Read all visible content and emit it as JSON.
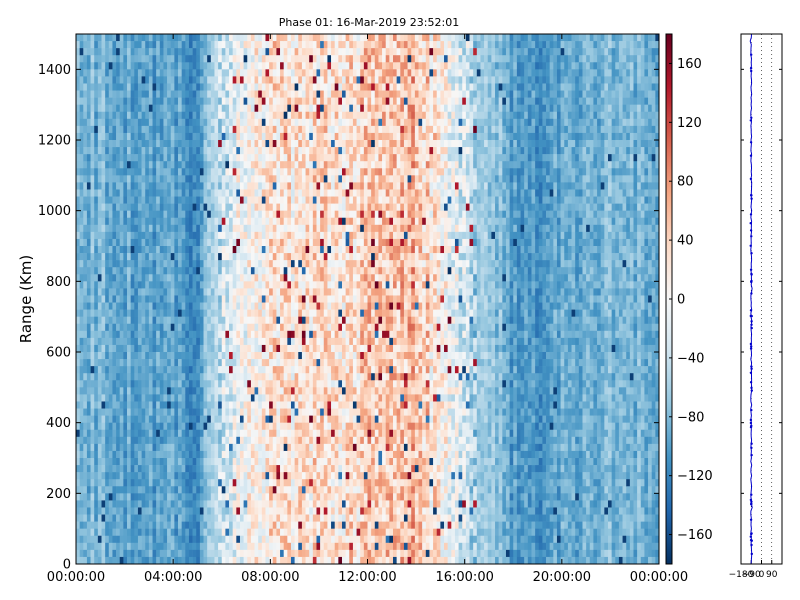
{
  "chart_data": {
    "type": "heatmap",
    "title": "Phase 01: 16-Mar-2019 23:52:01",
    "ylabel": "Range (Km)",
    "xlabel": "",
    "x_ticks": [
      "00:00:00",
      "04:00:00",
      "08:00:00",
      "12:00:00",
      "16:00:00",
      "20:00:00",
      "00:00:00"
    ],
    "x_range_hours": [
      0,
      24
    ],
    "y_ticks": [
      0,
      200,
      400,
      600,
      800,
      1000,
      1200,
      1400
    ],
    "ylim": [
      0,
      1500
    ],
    "colorbar": {
      "colormap": "RdBu_r",
      "range": [
        -180,
        180
      ],
      "ticks": [
        "−160",
        "−120",
        "−80",
        "−40",
        "0",
        "40",
        "80",
        "120",
        "160"
      ],
      "tick_values": [
        -160,
        -120,
        -80,
        -40,
        0,
        40,
        80,
        120,
        160
      ]
    },
    "time_profile_hours": [
      0,
      1,
      2,
      3,
      4,
      5,
      6,
      7,
      8,
      9,
      10,
      11,
      12,
      13,
      14,
      15,
      16,
      17,
      18,
      19,
      20,
      21,
      22,
      23,
      24
    ],
    "time_profile_phase_deg": [
      -80,
      -85,
      -95,
      -100,
      -100,
      -110,
      -40,
      0,
      20,
      25,
      30,
      25,
      40,
      60,
      55,
      10,
      -40,
      -60,
      -100,
      -110,
      -95,
      -90,
      -85,
      -80,
      -80
    ],
    "side_panel": {
      "type": "line",
      "x_ticks": [
        "−180",
        "−90",
        "0",
        "90"
      ],
      "x_tick_values": [
        -180,
        -90,
        0,
        90
      ],
      "xlim": [
        -180,
        180
      ],
      "ylim": [
        0,
        1500
      ],
      "profile_phase_deg": -90,
      "line_color": "#0000cc",
      "grid": "dotted"
    }
  }
}
